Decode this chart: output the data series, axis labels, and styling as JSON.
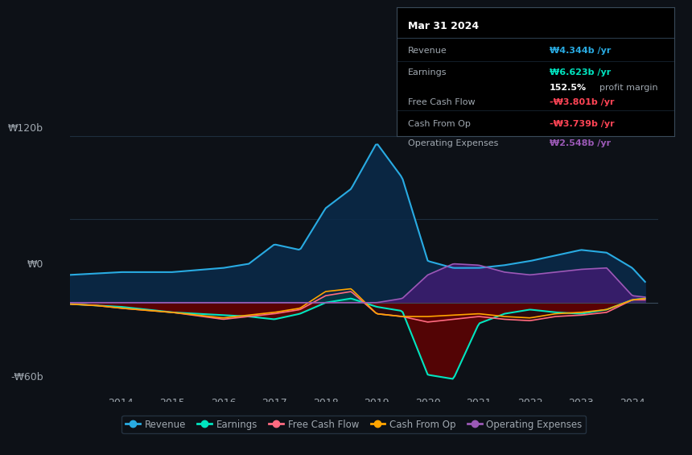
{
  "background_color": "#0d1117",
  "plot_bg_color": "#0d1117",
  "ylabel_120": "₩120b",
  "ylabel_0": "₩0",
  "ylabel_neg60": "-₩60b",
  "revenue_color": "#29abe2",
  "earnings_color": "#00e5c0",
  "free_cash_flow_color": "#ff6b81",
  "cash_from_op_color": "#ffa500",
  "operating_expenses_color": "#9b59b6",
  "text_color": "#a0a8b0",
  "tooltip_bg": "#000000",
  "tooltip_border": "#2a3a4a",
  "legend_labels": [
    "Revenue",
    "Earnings",
    "Free Cash Flow",
    "Cash From Op",
    "Operating Expenses"
  ]
}
